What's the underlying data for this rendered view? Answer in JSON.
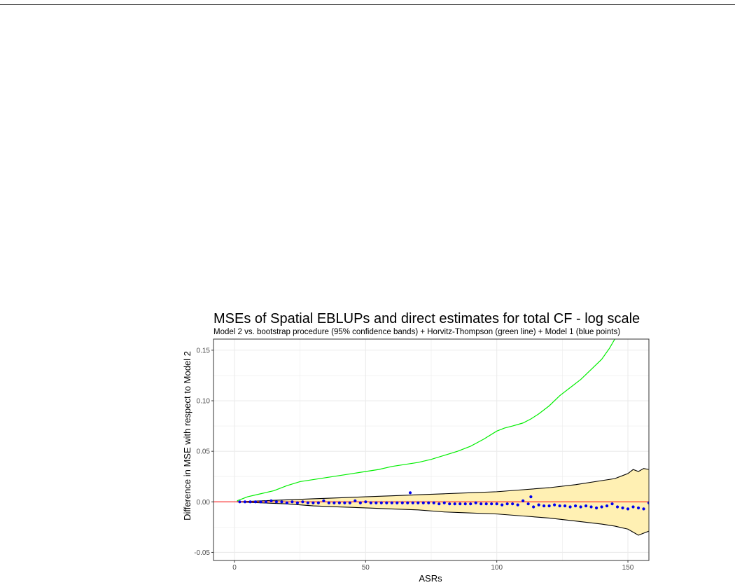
{
  "chart_data": {
    "type": "line",
    "title": "MSEs of Spatial EBLUPs and direct estimates for total CF - log scale",
    "subtitle": "Model 2 vs. bootstrap procedure (95% confidence bands) + Horvitz-Thompson (green line) + Model 1 (blue points)",
    "xlabel": "ASRs",
    "ylabel": "Difference in MSE with respect to Model 2",
    "xlim": [
      -8,
      158
    ],
    "ylim": [
      -0.058,
      0.161
    ],
    "x_ticks": [
      0,
      50,
      100,
      150
    ],
    "y_ticks": [
      -0.05,
      0.0,
      0.05,
      0.1,
      0.15
    ],
    "x_tick_labels": [
      "0",
      "50",
      "100",
      "150"
    ],
    "y_tick_labels": [
      "-0.05",
      "0.00",
      "0.05",
      "0.10",
      "0.15"
    ],
    "grid": true,
    "colors": {
      "band_fill": "#fff0b3",
      "band_edge": "#000000",
      "ht_line": "#00ee00",
      "zero_line": "#ff0000",
      "model1_points": "#0000ee",
      "panel_border": "#333333",
      "grid": "#ebebeb"
    },
    "series": [
      {
        "name": "Horvitz-Thompson",
        "kind": "line",
        "x": [
          1,
          5,
          10,
          15,
          20,
          25,
          30,
          35,
          40,
          45,
          50,
          55,
          60,
          65,
          70,
          75,
          80,
          85,
          90,
          95,
          100,
          103,
          106,
          110,
          113,
          116,
          120,
          124,
          128,
          132,
          136,
          140,
          143,
          145
        ],
        "y": [
          0.001,
          0.005,
          0.008,
          0.011,
          0.016,
          0.02,
          0.022,
          0.024,
          0.026,
          0.028,
          0.03,
          0.032,
          0.035,
          0.037,
          0.039,
          0.042,
          0.046,
          0.05,
          0.055,
          0.062,
          0.07,
          0.073,
          0.075,
          0.078,
          0.082,
          0.087,
          0.095,
          0.105,
          0.113,
          0.121,
          0.131,
          0.141,
          0.152,
          0.161
        ]
      },
      {
        "name": "Bootstrap 95% band upper",
        "kind": "band_upper",
        "x": [
          1,
          10,
          20,
          30,
          40,
          50,
          60,
          70,
          80,
          90,
          100,
          110,
          120,
          130,
          140,
          145,
          150,
          152,
          154,
          156,
          158
        ],
        "y": [
          0.0,
          0.001,
          0.002,
          0.003,
          0.004,
          0.005,
          0.006,
          0.007,
          0.008,
          0.009,
          0.01,
          0.012,
          0.014,
          0.017,
          0.021,
          0.023,
          0.028,
          0.032,
          0.03,
          0.033,
          0.032
        ]
      },
      {
        "name": "Bootstrap 95% band lower",
        "kind": "band_lower",
        "x": [
          1,
          10,
          20,
          30,
          40,
          50,
          60,
          70,
          80,
          90,
          100,
          110,
          120,
          130,
          140,
          145,
          150,
          152,
          154,
          156,
          158
        ],
        "y": [
          0.0,
          -0.001,
          -0.002,
          -0.004,
          -0.005,
          -0.006,
          -0.007,
          -0.008,
          -0.01,
          -0.011,
          -0.012,
          -0.014,
          -0.016,
          -0.019,
          -0.022,
          -0.024,
          -0.027,
          -0.03,
          -0.033,
          -0.031,
          -0.029
        ]
      },
      {
        "name": "Model 1",
        "kind": "points",
        "x": [
          2,
          4,
          6,
          8,
          10,
          12,
          14,
          16,
          18,
          20,
          22,
          24,
          26,
          28,
          30,
          32,
          34,
          36,
          38,
          40,
          42,
          44,
          46,
          48,
          50,
          52,
          54,
          56,
          58,
          60,
          62,
          64,
          66,
          67,
          68,
          70,
          72,
          74,
          76,
          78,
          80,
          82,
          84,
          86,
          88,
          90,
          92,
          94,
          96,
          98,
          100,
          102,
          104,
          106,
          108,
          110,
          112,
          113,
          114,
          116,
          118,
          120,
          122,
          124,
          126,
          128,
          130,
          132,
          134,
          136,
          138,
          140,
          142,
          144,
          146,
          148,
          150,
          152,
          154,
          156,
          158
        ],
        "y": [
          0.0,
          0.0,
          0.0,
          0.0,
          0.0,
          0.0,
          0.001,
          0.0,
          0.0,
          -0.001,
          0.0,
          -0.001,
          0.0,
          -0.001,
          -0.001,
          -0.001,
          0.001,
          -0.001,
          -0.001,
          -0.001,
          -0.001,
          -0.001,
          0.001,
          -0.001,
          0.0,
          -0.001,
          -0.001,
          -0.001,
          -0.001,
          -0.001,
          -0.001,
          -0.001,
          -0.001,
          0.009,
          -0.001,
          -0.001,
          -0.001,
          -0.001,
          -0.001,
          -0.002,
          -0.001,
          -0.002,
          -0.002,
          -0.002,
          -0.002,
          -0.002,
          -0.001,
          -0.002,
          -0.002,
          -0.002,
          -0.002,
          -0.003,
          -0.002,
          -0.002,
          -0.003,
          0.001,
          -0.002,
          0.005,
          -0.005,
          -0.003,
          -0.004,
          -0.004,
          -0.003,
          -0.004,
          -0.004,
          -0.005,
          -0.004,
          -0.005,
          -0.004,
          -0.005,
          -0.006,
          -0.005,
          -0.004,
          -0.002,
          -0.005,
          -0.006,
          -0.007,
          -0.005,
          -0.006,
          -0.007,
          -0.001
        ]
      }
    ]
  }
}
